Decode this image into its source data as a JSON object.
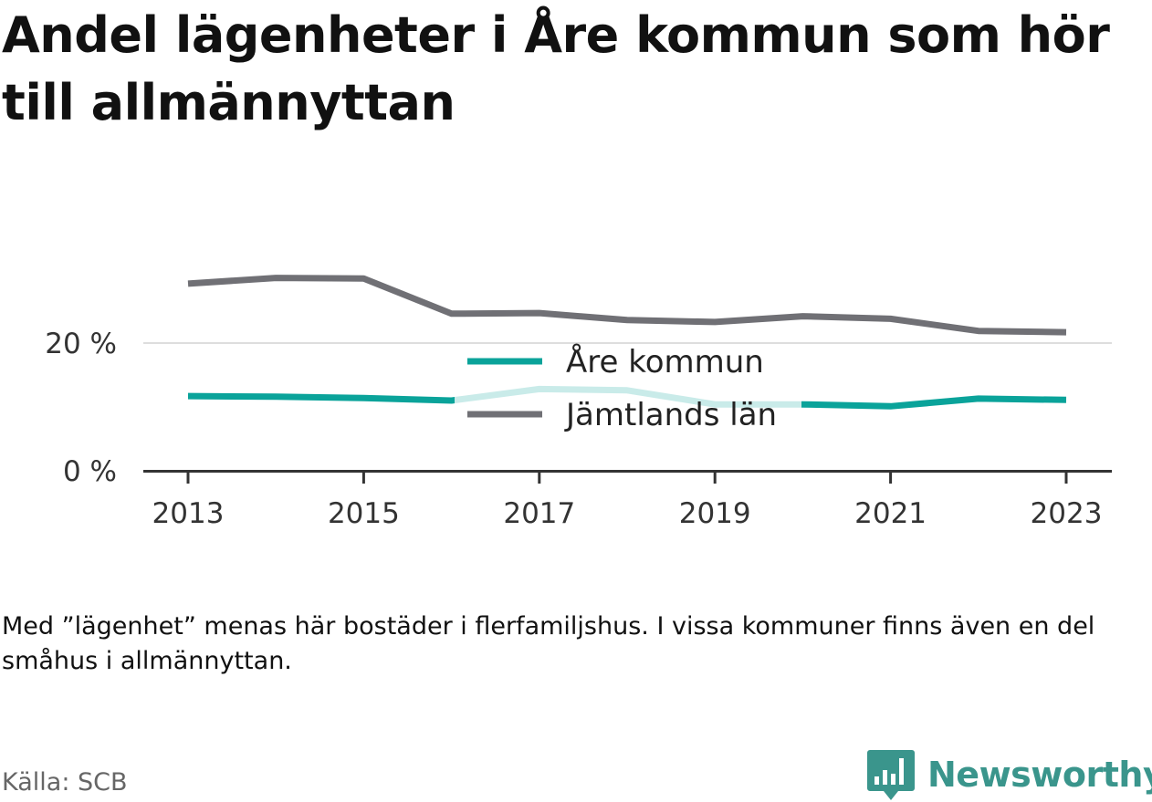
{
  "title": "Andel lägenheter i Åre kommun som hör till allmännyttan",
  "note": "Med ”lägenhet” menas här bostäder i flerfamiljshus. I vissa kommuner finns även en del småhus i allmännyttan.",
  "source": "Källa: SCB",
  "brand": {
    "name": "Newsworthy",
    "icon": "newsworthy-logo-icon",
    "color": "#3a958c"
  },
  "chart_data": {
    "type": "line",
    "x": [
      2013,
      2014,
      2015,
      2016,
      2017,
      2018,
      2019,
      2020,
      2021,
      2022,
      2023
    ],
    "xticks": [
      2013,
      2015,
      2017,
      2019,
      2021,
      2023
    ],
    "xtick_labels": [
      "2013",
      "2015",
      "2017",
      "2019",
      "2021",
      "2023"
    ],
    "yticks": [
      0,
      20
    ],
    "ytick_labels": [
      "0 %",
      "20 %"
    ],
    "ylim": [
      0,
      30
    ],
    "grid": true,
    "legend_position": "center",
    "series": [
      {
        "name": "Åre kommun",
        "color": "#0aa39a",
        "values": [
          11.7,
          11.6,
          11.4,
          11.0,
          12.8,
          12.6,
          10.4,
          10.4,
          10.1,
          11.3,
          11.1
        ]
      },
      {
        "name": "Jämtlands län",
        "color": "#707075",
        "values": [
          29.3,
          30.2,
          30.1,
          24.6,
          24.7,
          23.6,
          23.3,
          24.2,
          23.8,
          21.9,
          21.7
        ]
      }
    ]
  }
}
